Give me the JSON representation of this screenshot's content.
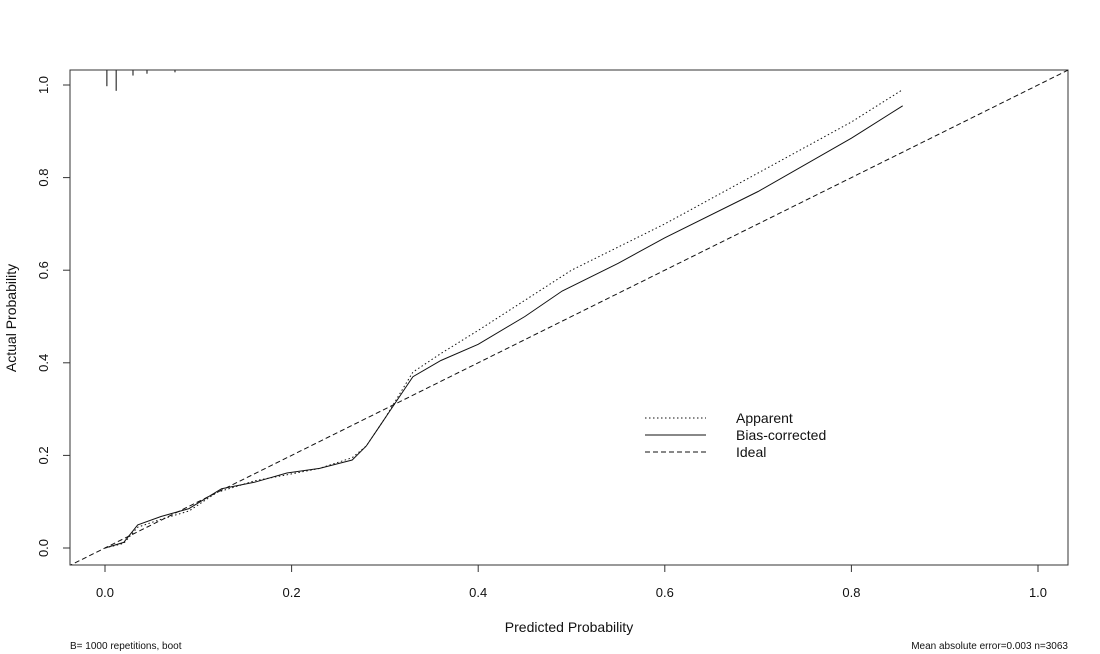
{
  "chart_data": {
    "type": "line",
    "xlabel": "Predicted Probability",
    "ylabel": "Actual Probability",
    "xlim": [
      -0.04,
      1.04
    ],
    "ylim": [
      -0.04,
      1.04
    ],
    "x_ticks": [
      "0.0",
      "0.2",
      "0.4",
      "0.6",
      "0.8",
      "1.0"
    ],
    "y_ticks": [
      "0.0",
      "0.2",
      "0.4",
      "0.6",
      "0.8",
      "1.0"
    ],
    "grid": false,
    "legend_position": "right",
    "series": [
      {
        "name": "Apparent",
        "line_style": "dotted",
        "x": [
          0.0,
          0.02,
          0.035,
          0.06,
          0.09,
          0.12,
          0.16,
          0.2,
          0.23,
          0.265,
          0.28,
          0.3,
          0.33,
          0.36,
          0.4,
          0.45,
          0.5,
          0.6,
          0.7,
          0.8,
          0.855
        ],
        "y": [
          0.0,
          0.01,
          0.045,
          0.062,
          0.08,
          0.12,
          0.145,
          0.16,
          0.172,
          0.195,
          0.22,
          0.28,
          0.38,
          0.42,
          0.47,
          0.535,
          0.6,
          0.7,
          0.81,
          0.92,
          0.99
        ]
      },
      {
        "name": "Bias-corrected",
        "line_style": "solid",
        "x": [
          0.0,
          0.02,
          0.035,
          0.06,
          0.09,
          0.125,
          0.16,
          0.195,
          0.23,
          0.265,
          0.28,
          0.3,
          0.33,
          0.36,
          0.4,
          0.45,
          0.49,
          0.55,
          0.6,
          0.7,
          0.8,
          0.855
        ],
        "y": [
          0.0,
          0.012,
          0.05,
          0.068,
          0.085,
          0.128,
          0.142,
          0.162,
          0.172,
          0.19,
          0.22,
          0.28,
          0.37,
          0.405,
          0.44,
          0.5,
          0.555,
          0.615,
          0.67,
          0.77,
          0.885,
          0.955
        ]
      },
      {
        "name": "Ideal",
        "line_style": "dashed",
        "x": [
          -0.04,
          1.04
        ],
        "y": [
          -0.04,
          1.04
        ]
      }
    ],
    "rug_x": [
      0.002,
      0.012,
      0.03,
      0.045,
      0.075
    ],
    "rug_len": [
      0.035,
      0.045,
      0.012,
      0.008,
      0.005
    ]
  },
  "footnotes": {
    "left": "B= 1000 repetitions, boot",
    "right": "Mean absolute error=0.003 n=3063"
  }
}
